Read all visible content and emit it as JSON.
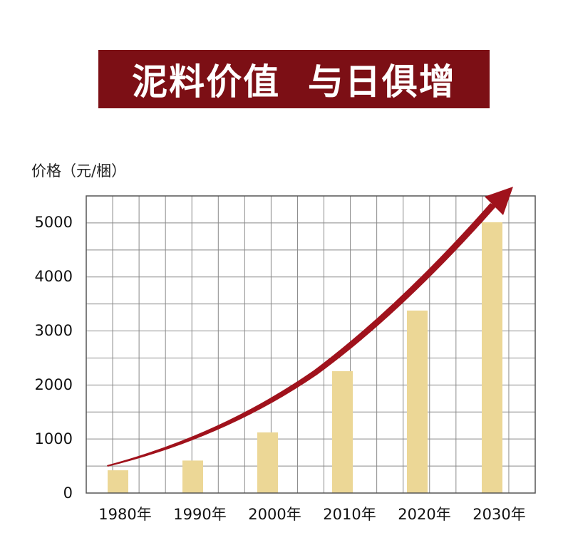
{
  "title": "泥料价值  与日俱增",
  "colors": {
    "banner": "#7c0f15",
    "bar": "#ecd796",
    "arrow": "#a0121c",
    "grid": "#8a8a8a",
    "frame": "#555555"
  },
  "chart_data": {
    "type": "bar",
    "title": "泥料价值  与日俱增",
    "xlabel": "",
    "ylabel": "价格（元/梱）",
    "ylim": [
      0,
      5500
    ],
    "yticks": [
      0,
      1000,
      2000,
      3000,
      4000,
      5000
    ],
    "ytick_labels": [
      "0",
      "1000",
      "2000",
      "3000",
      "4000",
      "5000"
    ],
    "categories": [
      "1980年",
      "1990年",
      "2000年",
      "2010年",
      "2020年",
      "2030年"
    ],
    "values": [
      420,
      600,
      1120,
      2250,
      3370,
      5000
    ],
    "grid": true,
    "trend_arrow": true
  }
}
